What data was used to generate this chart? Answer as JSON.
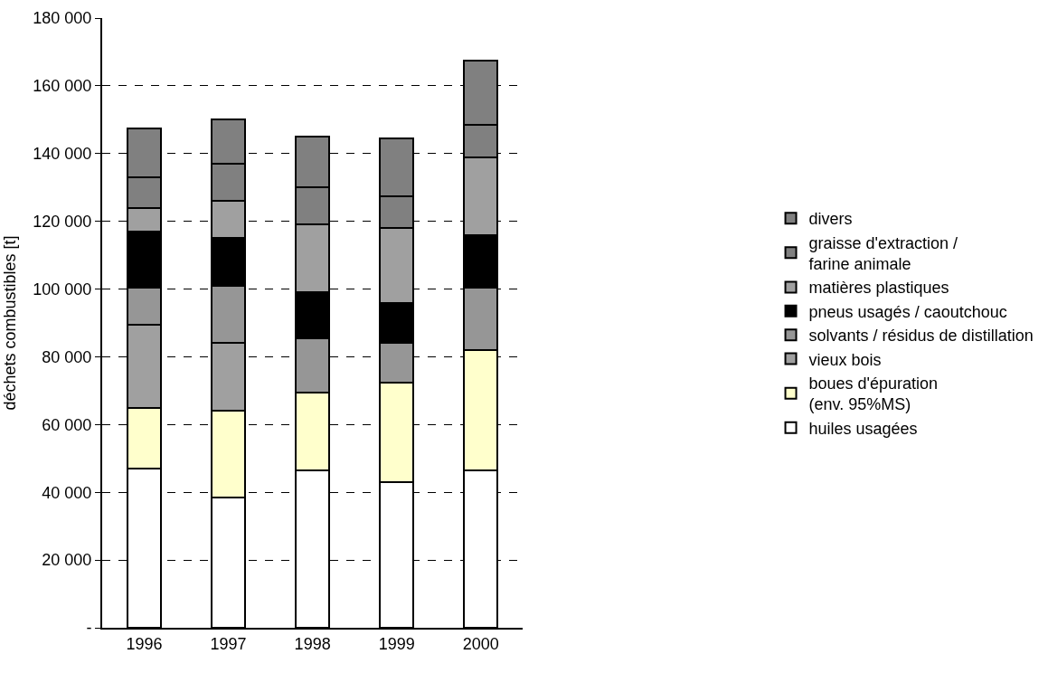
{
  "chart_data": {
    "type": "bar",
    "stacked": true,
    "ylabel": "déchets combustibles [t]",
    "categories": [
      "1996",
      "1997",
      "1998",
      "1999",
      "2000"
    ],
    "series": [
      {
        "name": "huiles usagées",
        "color": "#ffffff",
        "values": [
          47000,
          38500,
          46500,
          43000,
          46500
        ]
      },
      {
        "name": "boues d'épuration\n(env. 95%MS)",
        "color": "#ffffcc",
        "values": [
          18000,
          25500,
          23000,
          29500,
          35500
        ]
      },
      {
        "name": "vieux bois",
        "color": "#a0a0a0",
        "values": [
          24500,
          20000,
          0,
          0,
          0
        ]
      },
      {
        "name": "solvants / résidus de distillation",
        "color": "#969696",
        "values": [
          11000,
          17000,
          16000,
          11500,
          18500
        ]
      },
      {
        "name": "pneus usagés / caoutchouc",
        "color": "#000000",
        "values": [
          16500,
          14000,
          13500,
          12000,
          15500
        ]
      },
      {
        "name": "matières plastiques",
        "color": "#a0a0a0",
        "values": [
          7000,
          11000,
          20000,
          22000,
          23000
        ]
      },
      {
        "name": "graisse d'extraction /\nfarine animale",
        "color": "#808080",
        "values": [
          9000,
          11000,
          11000,
          9500,
          9500
        ]
      },
      {
        "name": "divers",
        "color": "#808080",
        "values": [
          14500,
          13000,
          15000,
          17000,
          19000
        ]
      }
    ],
    "ylim": [
      0,
      180000
    ],
    "yticks": [
      {
        "value": 0,
        "label": "-"
      },
      {
        "value": 20000,
        "label": "20 000"
      },
      {
        "value": 40000,
        "label": "40 000"
      },
      {
        "value": 60000,
        "label": "60 000"
      },
      {
        "value": 80000,
        "label": "80 000"
      },
      {
        "value": 100000,
        "label": "100 000"
      },
      {
        "value": 120000,
        "label": "120 000"
      },
      {
        "value": 140000,
        "label": "140 000"
      },
      {
        "value": 160000,
        "label": "160 000"
      },
      {
        "value": 180000,
        "label": "180 000"
      }
    ],
    "grid": "y",
    "legend": "right"
  }
}
